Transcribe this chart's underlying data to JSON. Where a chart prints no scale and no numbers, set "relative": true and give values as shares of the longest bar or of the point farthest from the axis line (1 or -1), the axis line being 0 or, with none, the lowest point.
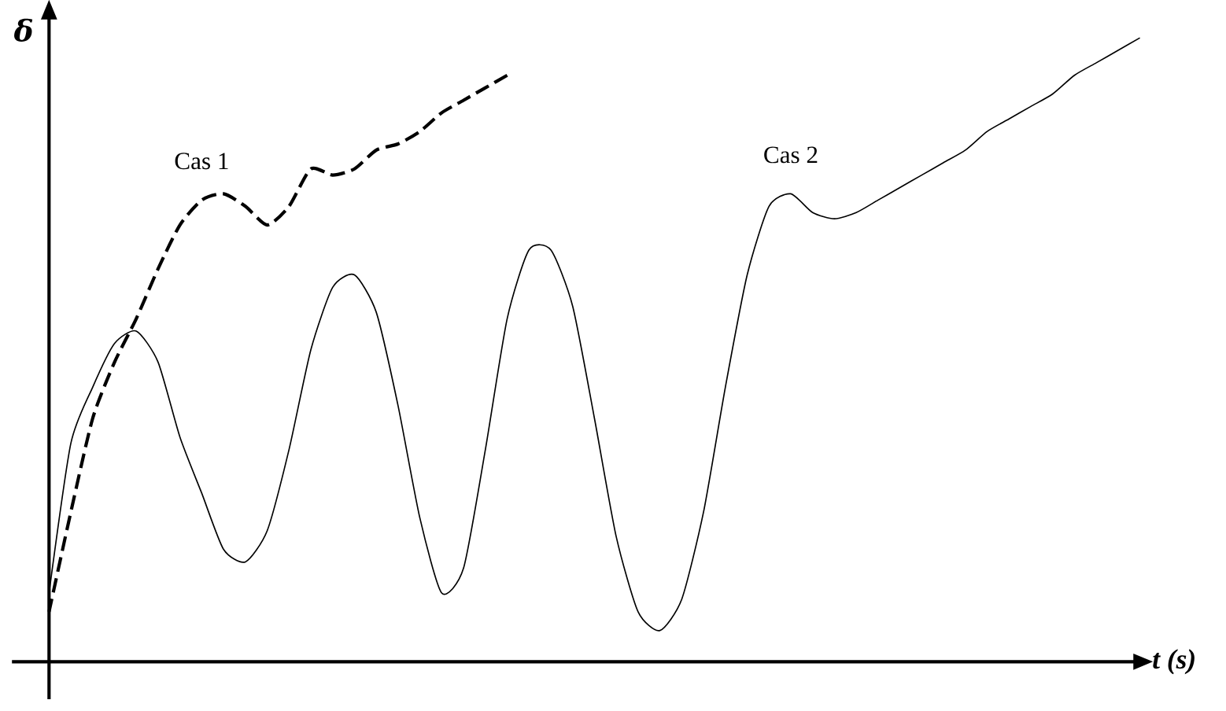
{
  "chart_data": {
    "type": "line",
    "relative": true,
    "xlabel": "t (s)",
    "ylabel": "δ",
    "categories": [
      null,
      null,
      null,
      null,
      null,
      null,
      null,
      null,
      null,
      null,
      null,
      null,
      null,
      null,
      null,
      null,
      null,
      null,
      null,
      null,
      null,
      null,
      null,
      null,
      null,
      null,
      null,
      null,
      null,
      null,
      null,
      null,
      null,
      null,
      null,
      null,
      null,
      null,
      null,
      null,
      null,
      null,
      null,
      null,
      null,
      null,
      null,
      null,
      null,
      null,
      null
    ],
    "series": [
      {
        "name": "Cas 1",
        "color": "#000000",
        "line_style": "dashed",
        "values": [
          0.08,
          0.24,
          0.39,
          0.48,
          0.55,
          0.63,
          0.7,
          0.74,
          0.75,
          0.73,
          0.7,
          0.73,
          0.79,
          0.78,
          0.79,
          0.82,
          0.83,
          0.85,
          0.88,
          0.9,
          0.92,
          0.94,
          null,
          null,
          null,
          null,
          null,
          null,
          null,
          null,
          null,
          null,
          null,
          null,
          null,
          null,
          null,
          null,
          null,
          null,
          null,
          null,
          null,
          null,
          null,
          null,
          null,
          null,
          null,
          null,
          null
        ]
      },
      {
        "name": "Cas 2",
        "color": "#000000",
        "line_style": "solid",
        "values": [
          0.11,
          0.35,
          0.44,
          0.51,
          0.53,
          0.48,
          0.36,
          0.27,
          0.18,
          0.16,
          0.21,
          0.34,
          0.5,
          0.6,
          0.62,
          0.56,
          0.41,
          0.23,
          0.11,
          0.15,
          0.34,
          0.55,
          0.66,
          0.66,
          0.57,
          0.39,
          0.2,
          0.08,
          0.05,
          0.1,
          0.24,
          0.44,
          0.62,
          0.73,
          0.75,
          0.72,
          0.71,
          0.72,
          0.74,
          0.76,
          0.78,
          0.8,
          0.82,
          0.85,
          0.87,
          0.89,
          0.91,
          0.94,
          0.96,
          0.98,
          1.0
        ]
      }
    ]
  }
}
